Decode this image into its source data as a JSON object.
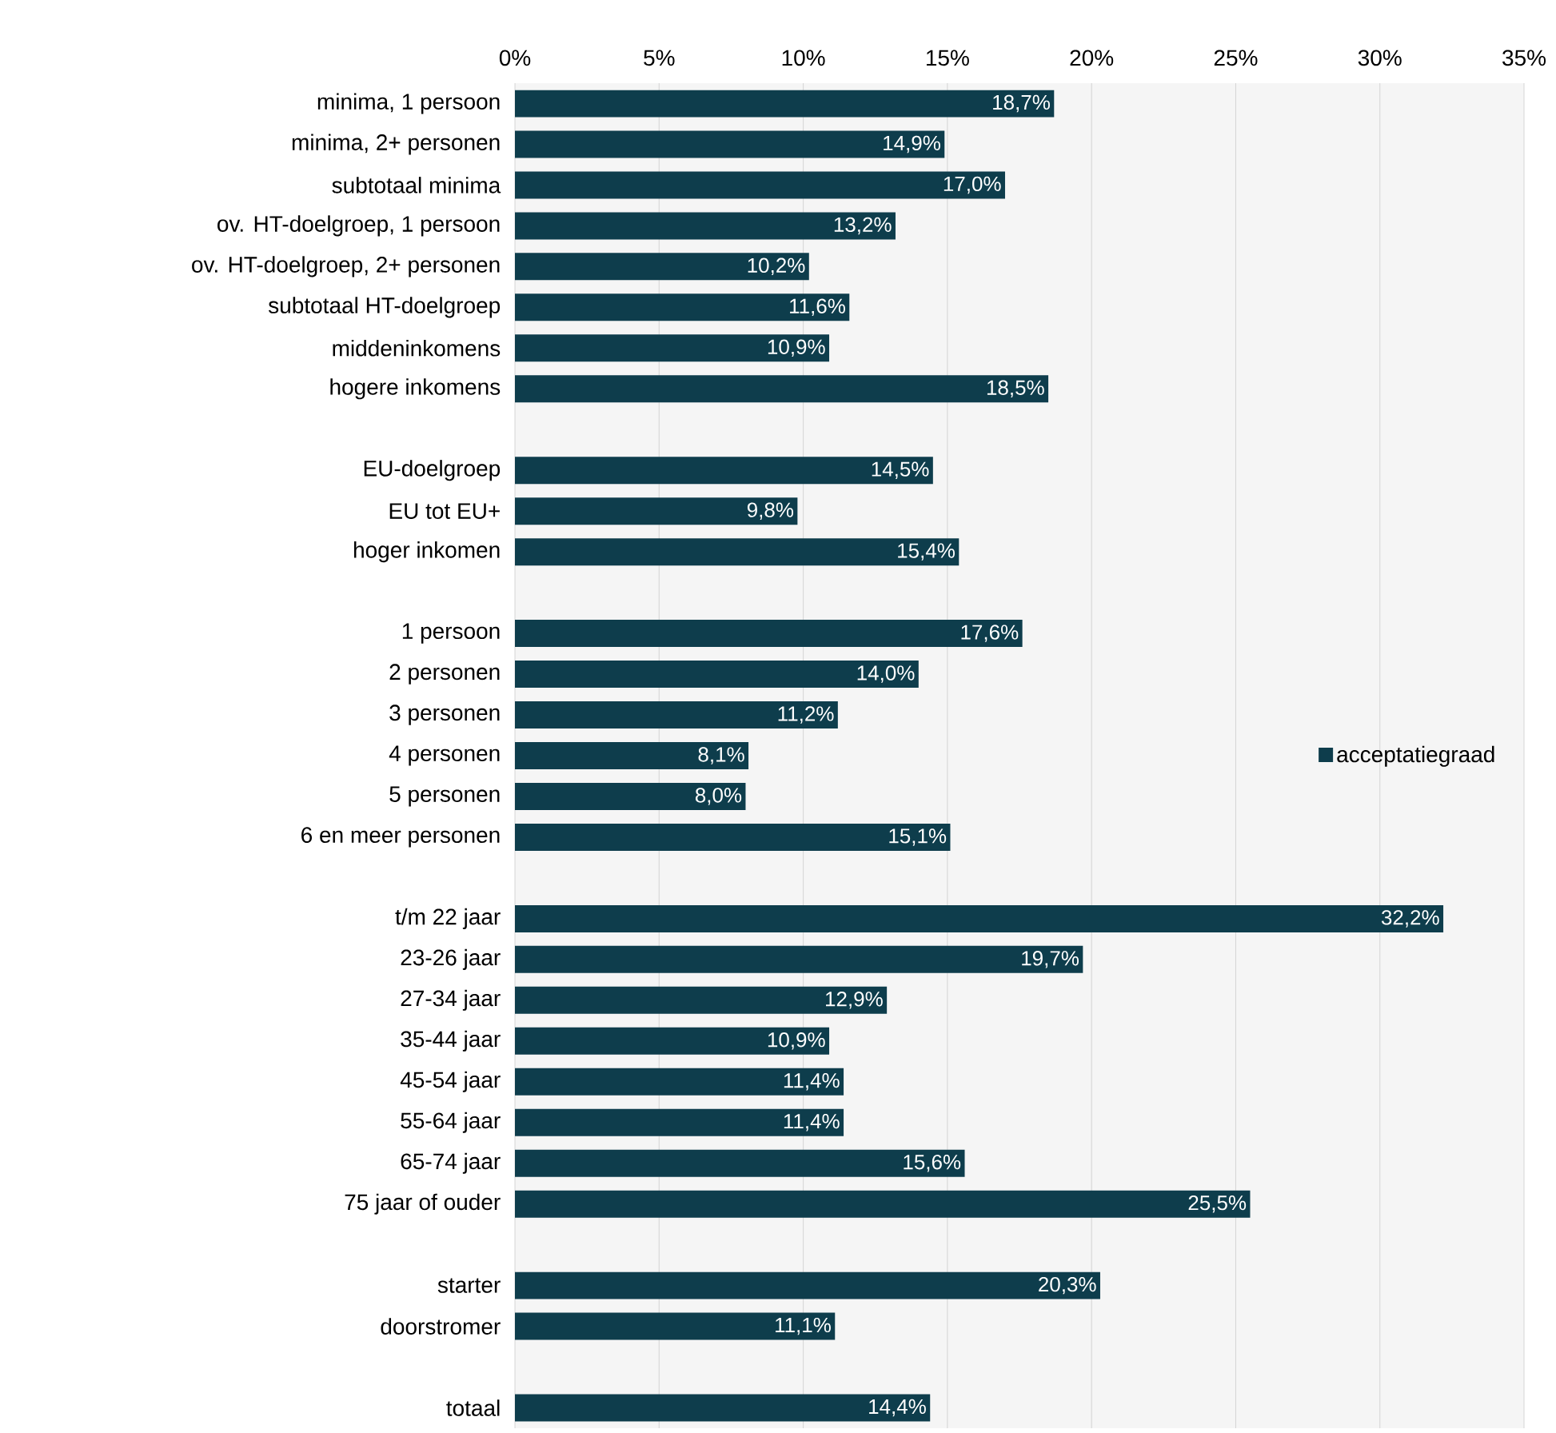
{
  "chart_data": {
    "type": "bar",
    "orientation": "horizontal",
    "categories": [
      "minima, 1 persoon",
      "minima, 2+ personen",
      "subtotaal minima",
      "ov. HT-doelgroep, 1 persoon",
      "ov. HT-doelgroep, 2+ personen",
      "subtotaal HT-doelgroep",
      "middeninkomens",
      "hogere inkomens",
      null,
      "EU-doelgroep",
      "EU tot EU+",
      "hoger inkomen",
      null,
      "1 persoon",
      "2 personen",
      "3 personen",
      "4 personen",
      "5 personen",
      "6 en meer personen",
      null,
      "t/m 22 jaar",
      "23-26 jaar",
      "27-34 jaar",
      "35-44 jaar",
      "45-54 jaar",
      "55-64 jaar",
      "65-74 jaar",
      "75 jaar of ouder",
      null,
      "starter",
      "doorstromer",
      null,
      "totaal"
    ],
    "series": [
      {
        "name": "acceptatiegraad",
        "color": "#0e3d4c",
        "values": [
          18.7,
          14.9,
          17.0,
          13.2,
          10.2,
          11.6,
          10.9,
          18.5,
          null,
          14.5,
          9.8,
          15.4,
          null,
          17.6,
          14.0,
          11.2,
          8.1,
          8.0,
          15.1,
          null,
          32.2,
          19.7,
          12.9,
          10.9,
          11.4,
          11.4,
          15.6,
          25.5,
          null,
          20.3,
          11.1,
          null,
          14.4
        ],
        "value_labels": [
          "18,7%",
          "14,9%",
          "17,0%",
          "13,2%",
          "10,2%",
          "11,6%",
          "10,9%",
          "18,5%",
          null,
          "14,5%",
          "9,8%",
          "15,4%",
          null,
          "17,6%",
          "14,0%",
          "11,2%",
          "8,1%",
          "8,0%",
          "15,1%",
          null,
          "32,2%",
          "19,7%",
          "12,9%",
          "10,9%",
          "11,4%",
          "11,4%",
          "15,6%",
          "25,5%",
          null,
          "20,3%",
          "11,1%",
          null,
          "14,4%"
        ]
      }
    ],
    "xlim": [
      0,
      35
    ],
    "xticks": [
      {
        "value": 0,
        "label": "0%"
      },
      {
        "value": 5,
        "label": "5%"
      },
      {
        "value": 10,
        "label": "10%"
      },
      {
        "value": 15,
        "label": "15%"
      },
      {
        "value": 20,
        "label": "20%"
      },
      {
        "value": 25,
        "label": "25%"
      },
      {
        "value": 30,
        "label": "30%"
      },
      {
        "value": 35,
        "label": "35%"
      }
    ],
    "grid": "x",
    "legend": "right"
  }
}
